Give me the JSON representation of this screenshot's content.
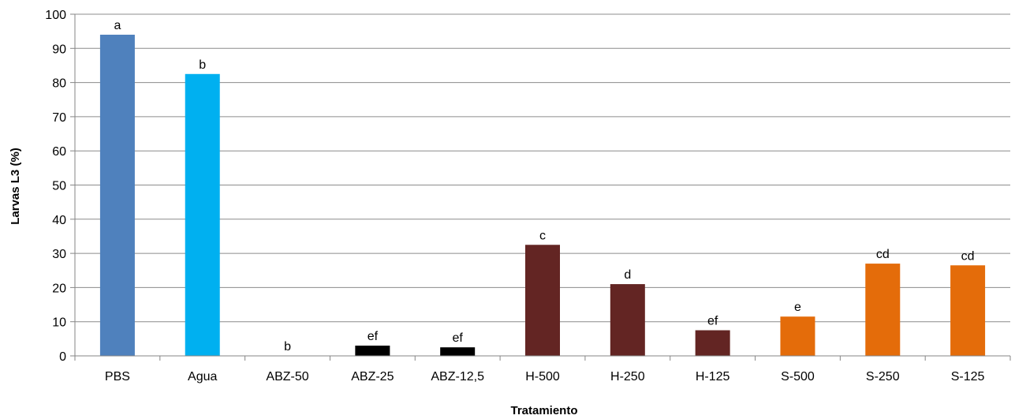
{
  "chart_data": {
    "type": "bar",
    "title": "",
    "xlabel": "Tratamiento",
    "ylabel": "Larvas L3 (%)",
    "ylim": [
      0,
      100
    ],
    "yticks": [
      0,
      10,
      20,
      30,
      40,
      50,
      60,
      70,
      80,
      90,
      100
    ],
    "grid": true,
    "legend": "none",
    "categories": [
      "PBS",
      "Agua",
      "ABZ-50",
      "ABZ-25",
      "ABZ-12,5",
      "H-500",
      "H-250",
      "H-125",
      "S-500",
      "S-250",
      "S-125"
    ],
    "values": [
      94,
      82.5,
      0,
      3,
      2.5,
      32.5,
      21,
      7.5,
      11.5,
      27,
      26.5
    ],
    "labels": [
      "a",
      "b",
      "b",
      "ef",
      "ef",
      "c",
      "d",
      "ef",
      "e",
      "cd",
      "cd"
    ],
    "colors": [
      "#4f81bd",
      "#00b0f0",
      "#000000",
      "#000000",
      "#000000",
      "#632523",
      "#632523",
      "#632523",
      "#e46c0a",
      "#e46c0a",
      "#e46c0a"
    ]
  }
}
